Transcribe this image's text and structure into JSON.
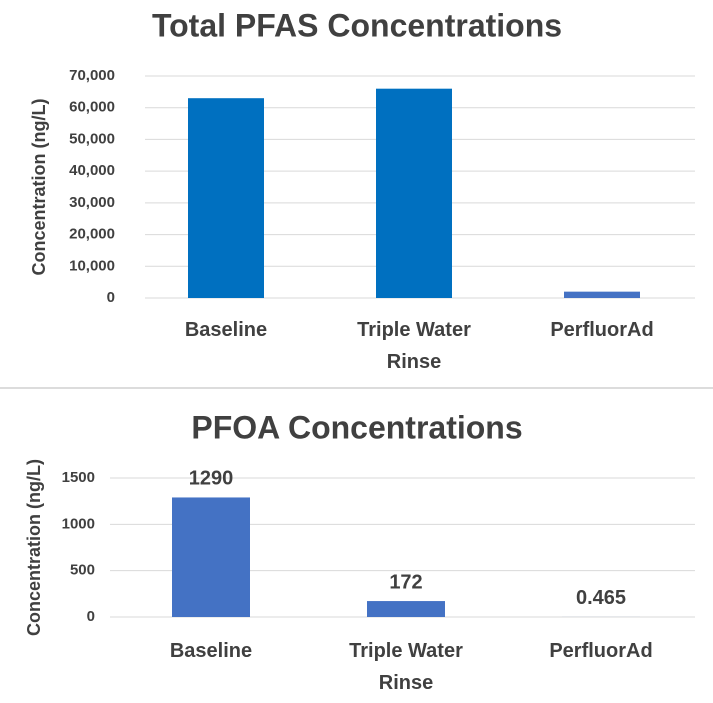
{
  "chart_data": [
    {
      "type": "bar",
      "title": "Total PFAS Concentrations",
      "y_label": "Concentration (ng/L)",
      "categories": [
        "Baseline",
        "Triple Water Rinse",
        "PerfluorAd"
      ],
      "values": [
        63000,
        66000,
        2000
      ],
      "colors": [
        "#0070c0",
        "#0070c0",
        "#4472c4"
      ],
      "ylim": [
        0,
        70000
      ],
      "yticks": [
        0,
        {
          "value": 10000,
          "label": "10,000"
        },
        {
          "value": 20000,
          "label": "20,000"
        },
        {
          "value": 30000,
          "label": "30,000"
        },
        {
          "value": 40000,
          "label": "40,000"
        },
        {
          "value": 50000,
          "label": "50,000"
        },
        {
          "value": 60000,
          "label": "60,000"
        },
        {
          "value": 70000,
          "label": "70,000"
        }
      ],
      "grid": true,
      "data_labels": false
    },
    {
      "type": "bar",
      "title": "PFOA Concentrations",
      "y_label": "Concentration (ng/L)",
      "categories": [
        "Baseline",
        "Triple Water Rinse",
        "PerfluorAd"
      ],
      "values": [
        1290,
        172,
        0.465
      ],
      "color": "#4472c4",
      "ylim": [
        0,
        1500
      ],
      "yticks": [
        0,
        500,
        1000,
        1500
      ],
      "grid": true,
      "data_labels": true
    }
  ]
}
